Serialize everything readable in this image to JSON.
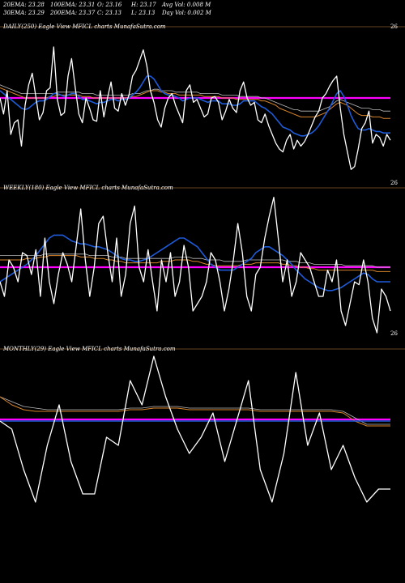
{
  "header": {
    "row1": [
      "20EMA: 23.28",
      "100EMA: 23.31",
      "O: 23.16",
      "H: 23.17",
      "Avg Vol: 0.008  M"
    ],
    "row2": [
      "30EMA: 23.29",
      "200EMA: 23.37",
      "C: 23.13",
      "L: 23.13",
      "Day Vol: 0.002  M"
    ]
  },
  "colors": {
    "background": "#000000",
    "price": "#ffffff",
    "ema_fast": "#1e5bd8",
    "ema_slow": "#d8842a",
    "ema_mid": "#bbbbbb",
    "horizontal": "#ff00ff",
    "separator": "#8b5a2b"
  },
  "panels": [
    {
      "label": "DAILY(250) Eagle  View  MFICL charts MunafaSutra.com",
      "price_top": "26",
      "price_bottom": "26"
    },
    {
      "label": "WEEKLY(180) Eagle  View  MFICL charts MunafaSutra.com",
      "price_top": "",
      "price_bottom": "26"
    },
    {
      "label": "MONTHLY(29) Eagle  View  MFICL charts MunafaSutra.com",
      "price_top": "",
      "price_bottom": ""
    }
  ],
  "chart_data": [
    {
      "type": "line",
      "title": "DAILY(250) Eagle  View  MFICL charts MunafaSutra.com",
      "ylim": [
        0,
        100
      ],
      "series": [
        {
          "role": "price",
          "values": [
            55,
            44,
            60,
            30,
            38,
            40,
            22,
            50,
            64,
            72,
            56,
            40,
            45,
            60,
            62,
            90,
            54,
            43,
            45,
            70,
            82,
            62,
            44,
            38,
            55,
            48,
            40,
            39,
            60,
            42,
            55,
            66,
            48,
            46,
            58,
            50,
            57,
            70,
            74,
            81,
            88,
            77,
            60,
            52,
            40,
            35,
            48,
            55,
            58,
            50,
            44,
            38,
            60,
            64,
            52,
            54,
            48,
            42,
            44,
            55,
            56,
            52,
            40,
            46,
            54,
            48,
            45,
            60,
            66,
            55,
            50,
            52,
            40,
            38,
            44,
            36,
            30,
            24,
            20,
            18,
            26,
            30,
            20,
            26,
            22,
            25,
            30,
            36,
            42,
            46,
            55,
            58,
            63,
            67,
            70,
            48,
            30,
            18,
            6,
            8,
            20,
            34,
            38,
            46,
            24,
            30,
            28,
            22,
            30,
            26
          ]
        },
        {
          "role": "ema_fast",
          "values": [
            60,
            58,
            56,
            54,
            52,
            50,
            48,
            47,
            48,
            50,
            52,
            53,
            53,
            54,
            56,
            58,
            58,
            57,
            56,
            57,
            58,
            58,
            56,
            54,
            54,
            53,
            52,
            51,
            52,
            52,
            53,
            54,
            54,
            53,
            54,
            54,
            55,
            57,
            59,
            62,
            66,
            70,
            70,
            68,
            64,
            60,
            58,
            57,
            57,
            56,
            55,
            53,
            54,
            55,
            55,
            55,
            54,
            53,
            52,
            53,
            53,
            53,
            51,
            51,
            51,
            50,
            50,
            51,
            53,
            53,
            53,
            53,
            51,
            49,
            48,
            46,
            44,
            41,
            38,
            35,
            34,
            33,
            31,
            30,
            29,
            29,
            30,
            31,
            33,
            36,
            40,
            44,
            48,
            53,
            58,
            60,
            56,
            50,
            43,
            38,
            34,
            33,
            33,
            34,
            33,
            32,
            32,
            31,
            31,
            31
          ]
        },
        {
          "role": "ema_slow",
          "values": [
            62,
            61,
            60,
            59,
            58,
            57,
            56,
            55,
            55,
            55,
            55,
            55,
            55,
            55,
            56,
            56,
            57,
            57,
            57,
            57,
            57,
            57,
            57,
            56,
            56,
            56,
            55,
            55,
            55,
            55,
            55,
            55,
            55,
            55,
            55,
            55,
            55,
            56,
            56,
            57,
            58,
            59,
            60,
            60,
            60,
            59,
            59,
            58,
            58,
            58,
            57,
            57,
            57,
            57,
            57,
            57,
            57,
            56,
            56,
            56,
            56,
            56,
            55,
            55,
            55,
            55,
            54,
            54,
            54,
            54,
            54,
            54,
            54,
            53,
            53,
            52,
            51,
            50,
            48,
            47,
            46,
            45,
            44,
            43,
            42,
            42,
            42,
            42,
            42,
            43,
            44,
            45,
            47,
            49,
            51,
            52,
            51,
            50,
            48,
            46,
            44,
            43,
            43,
            43,
            42,
            42,
            42,
            41,
            41,
            41
          ]
        },
        {
          "role": "ema_mid",
          "values": [
            64,
            63,
            62,
            61,
            60,
            59,
            58,
            58,
            58,
            58,
            58,
            58,
            58,
            58,
            58,
            58,
            59,
            59,
            59,
            59,
            59,
            59,
            59,
            58,
            58,
            58,
            58,
            57,
            57,
            57,
            57,
            57,
            57,
            57,
            57,
            57,
            57,
            58,
            58,
            58,
            59,
            60,
            60,
            61,
            61,
            60,
            60,
            60,
            60,
            59,
            59,
            59,
            59,
            59,
            59,
            59,
            58,
            58,
            58,
            58,
            58,
            58,
            57,
            57,
            57,
            57,
            57,
            56,
            56,
            56,
            56,
            56,
            56,
            55,
            55,
            54,
            53,
            52,
            51,
            50,
            49,
            48,
            47,
            47,
            46,
            46,
            46,
            46,
            46,
            46,
            47,
            48,
            49,
            51,
            53,
            54,
            53,
            52,
            51,
            50,
            49,
            48,
            48,
            48,
            47,
            47,
            47,
            46,
            46,
            46
          ]
        },
        {
          "role": "horizontal",
          "values": [
            55,
            55
          ]
        }
      ]
    },
    {
      "type": "line",
      "title": "WEEKLY(180) Eagle  View  MFICL charts MunafaSutra.com",
      "ylim": [
        0,
        100
      ],
      "series": [
        {
          "role": "price",
          "values": [
            40,
            30,
            55,
            50,
            40,
            60,
            58,
            45,
            62,
            30,
            70,
            40,
            25,
            45,
            60,
            52,
            40,
            65,
            90,
            55,
            30,
            50,
            80,
            85,
            60,
            40,
            70,
            30,
            45,
            80,
            92,
            50,
            40,
            62,
            40,
            20,
            55,
            40,
            60,
            30,
            40,
            65,
            50,
            20,
            25,
            30,
            40,
            60,
            55,
            40,
            20,
            35,
            55,
            80,
            60,
            30,
            20,
            45,
            50,
            70,
            85,
            98,
            70,
            40,
            55,
            30,
            40,
            60,
            55,
            50,
            40,
            30,
            30,
            48,
            40,
            55,
            20,
            10,
            25,
            40,
            38,
            55,
            40,
            15,
            5,
            35,
            30,
            20
          ]
        },
        {
          "role": "ema_fast",
          "values": [
            40,
            42,
            44,
            46,
            48,
            50,
            52,
            55,
            58,
            62,
            66,
            70,
            72,
            72,
            72,
            70,
            68,
            67,
            66,
            66,
            65,
            64,
            64,
            63,
            62,
            60,
            58,
            56,
            55,
            55,
            54,
            54,
            55,
            56,
            58,
            60,
            62,
            64,
            66,
            68,
            70,
            70,
            68,
            66,
            64,
            60,
            56,
            52,
            50,
            48,
            48,
            48,
            48,
            50,
            52,
            54,
            56,
            60,
            62,
            64,
            64,
            62,
            60,
            58,
            55,
            52,
            48,
            45,
            42,
            40,
            38,
            36,
            35,
            34,
            34,
            35,
            36,
            38,
            40,
            42,
            44,
            46,
            45,
            42,
            40,
            40,
            40,
            40
          ]
        },
        {
          "role": "ema_slow",
          "values": [
            55,
            55,
            55,
            55,
            55,
            55,
            56,
            56,
            56,
            57,
            57,
            58,
            58,
            58,
            58,
            58,
            58,
            58,
            57,
            57,
            57,
            56,
            56,
            56,
            55,
            55,
            54,
            54,
            53,
            53,
            53,
            53,
            53,
            53,
            53,
            53,
            54,
            54,
            54,
            55,
            55,
            55,
            55,
            54,
            54,
            53,
            52,
            52,
            51,
            51,
            51,
            51,
            51,
            51,
            52,
            52,
            52,
            53,
            53,
            53,
            53,
            53,
            53,
            52,
            52,
            51,
            51,
            50,
            50,
            49,
            49,
            48,
            48,
            48,
            48,
            48,
            48,
            48,
            48,
            48,
            48,
            48,
            48,
            48,
            47,
            47,
            47,
            47
          ]
        },
        {
          "role": "ema_mid",
          "values": [
            58,
            58,
            58,
            58,
            58,
            58,
            58,
            58,
            58,
            58,
            59,
            59,
            59,
            59,
            59,
            59,
            59,
            59,
            59,
            59,
            58,
            58,
            58,
            58,
            58,
            57,
            57,
            57,
            56,
            56,
            56,
            56,
            56,
            56,
            56,
            56,
            56,
            56,
            56,
            57,
            57,
            57,
            57,
            56,
            56,
            56,
            55,
            55,
            55,
            55,
            54,
            54,
            54,
            54,
            54,
            55,
            55,
            55,
            55,
            55,
            55,
            55,
            55,
            55,
            54,
            54,
            54,
            53,
            53,
            53,
            52,
            52,
            52,
            52,
            52,
            52,
            52,
            51,
            51,
            51,
            51,
            51,
            51,
            51,
            50,
            50,
            50,
            50
          ]
        },
        {
          "role": "horizontal",
          "values": [
            50,
            50
          ]
        }
      ]
    },
    {
      "type": "line",
      "title": "MONTHLY(29) Eagle  View  MFICL charts MunafaSutra.com",
      "ylim": [
        0,
        100
      ],
      "series": [
        {
          "role": "price",
          "values": [
            60,
            55,
            30,
            10,
            45,
            70,
            35,
            15,
            15,
            50,
            45,
            85,
            70,
            100,
            75,
            55,
            40,
            50,
            65,
            35,
            60,
            85,
            30,
            10,
            40,
            90,
            45,
            65,
            30,
            45,
            25,
            10,
            18,
            18
          ]
        },
        {
          "role": "ema_fast",
          "values": [
            60,
            60,
            60,
            60,
            60,
            60,
            60,
            60,
            60,
            60,
            60,
            60,
            60,
            60,
            60,
            60,
            60,
            60,
            60,
            60,
            60,
            60,
            60,
            60,
            60,
            60,
            60,
            60,
            60,
            60,
            60,
            60,
            60,
            60
          ]
        },
        {
          "role": "ema_slow",
          "values": [
            75,
            70,
            67,
            66,
            66,
            66,
            66,
            66,
            66,
            66,
            66,
            67,
            67,
            68,
            68,
            68,
            67,
            67,
            67,
            67,
            67,
            67,
            66,
            66,
            66,
            66,
            66,
            66,
            66,
            65,
            60,
            57,
            57,
            57
          ]
        },
        {
          "role": "ema_mid",
          "values": [
            75,
            72,
            69,
            68,
            67,
            67,
            67,
            67,
            67,
            67,
            67,
            68,
            68,
            69,
            69,
            69,
            68,
            68,
            68,
            68,
            68,
            68,
            67,
            67,
            67,
            67,
            67,
            67,
            67,
            66,
            62,
            58,
            58,
            58
          ]
        },
        {
          "role": "horizontal",
          "values": [
            61,
            61
          ]
        }
      ]
    }
  ]
}
